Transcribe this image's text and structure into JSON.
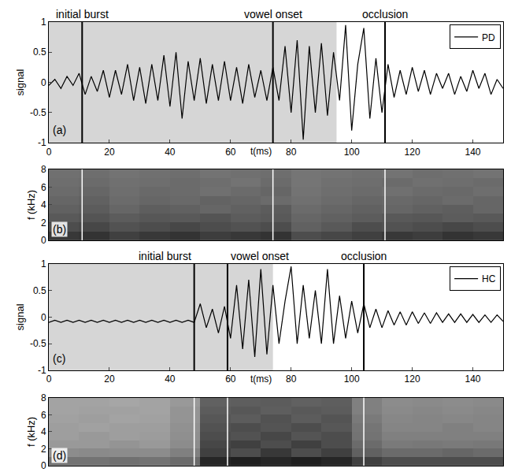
{
  "chart_data": [
    {
      "type": "line",
      "panel_label": "(a)",
      "x_label": "t(ms)",
      "y_label": "signal",
      "xlim": [
        0,
        150
      ],
      "xticks": [
        0,
        20,
        40,
        60,
        80,
        100,
        120,
        140
      ],
      "ylim": [
        -1,
        1
      ],
      "yticks": [
        -1,
        -0.5,
        0,
        0.5,
        1
      ],
      "legend": "upper right",
      "shaded": [
        0,
        95
      ],
      "events": [
        {
          "label": "initial burst",
          "x": 11
        },
        {
          "label": "vowel onset",
          "x": 74
        },
        {
          "label": "occlusion",
          "x": 111
        }
      ],
      "series": [
        {
          "name": "PD",
          "color": "#000000",
          "x": [
            0,
            2,
            4,
            6,
            8,
            10,
            12,
            14,
            16,
            18,
            20,
            22,
            24,
            26,
            28,
            30,
            32,
            34,
            36,
            38,
            40,
            42,
            44,
            46,
            48,
            50,
            52,
            54,
            56,
            58,
            60,
            62,
            64,
            66,
            68,
            70,
            72,
            74,
            76,
            78,
            80,
            82,
            84,
            86,
            88,
            90,
            92,
            94,
            96,
            98,
            100,
            102,
            104,
            106,
            108,
            110,
            112,
            114,
            116,
            118,
            120,
            122,
            124,
            126,
            128,
            130,
            132,
            134,
            136,
            138,
            140,
            142,
            144,
            146,
            148,
            150
          ],
          "values": [
            -0.05,
            0.05,
            -0.1,
            0.1,
            -0.05,
            0.15,
            -0.2,
            0.1,
            -0.15,
            0.2,
            -0.25,
            0.2,
            -0.2,
            0.3,
            -0.3,
            0.25,
            -0.35,
            0.3,
            -0.3,
            0.45,
            -0.4,
            0.5,
            -0.6,
            0.35,
            -0.3,
            0.4,
            -0.35,
            0.3,
            -0.3,
            0.35,
            -0.3,
            0.25,
            -0.35,
            0.3,
            -0.25,
            0.2,
            -0.3,
            0.25,
            -0.3,
            0.6,
            -0.5,
            0.7,
            -0.95,
            0.6,
            -0.5,
            0.65,
            -0.55,
            0.5,
            -0.3,
            0.95,
            -0.8,
            0.3,
            0.9,
            -0.6,
            0.4,
            -0.5,
            0.3,
            -0.25,
            0.2,
            -0.2,
            0.25,
            -0.15,
            0.2,
            -0.2,
            0.15,
            -0.1,
            0.15,
            -0.2,
            0.1,
            -0.15,
            0.2,
            -0.1,
            0.15,
            -0.2,
            0.05,
            -0.1
          ]
        }
      ]
    },
    {
      "type": "heatmap",
      "panel_label": "(b)",
      "y_label": "f (kHz)",
      "color": "gray",
      "xlim": [
        0,
        150
      ],
      "ylim": [
        0,
        8
      ],
      "yticks": [
        0,
        2,
        4,
        6,
        8
      ],
      "tick_labels": "y",
      "zlim": [
        0,
        1
      ],
      "event_lines": [
        11,
        74,
        111
      ],
      "x": [
        5,
        15,
        25,
        35,
        45,
        55,
        65,
        75,
        85,
        95,
        105,
        115,
        125,
        135,
        145
      ],
      "y": [
        0.5,
        1.5,
        2.5,
        3.5,
        4.5,
        5.5,
        6.5,
        7.5
      ],
      "cells": [
        [
          0.22,
          0.2,
          0.25,
          0.22,
          0.2,
          0.24,
          0.22,
          0.2,
          0.3,
          0.28,
          0.25,
          0.22,
          0.24,
          0.2,
          0.22
        ],
        [
          0.3,
          0.28,
          0.32,
          0.3,
          0.28,
          0.3,
          0.32,
          0.3,
          0.38,
          0.35,
          0.3,
          0.32,
          0.3,
          0.28,
          0.3
        ],
        [
          0.35,
          0.33,
          0.36,
          0.34,
          0.35,
          0.33,
          0.36,
          0.35,
          0.4,
          0.38,
          0.36,
          0.35,
          0.34,
          0.36,
          0.35
        ],
        [
          0.38,
          0.36,
          0.4,
          0.37,
          0.38,
          0.4,
          0.38,
          0.36,
          0.42,
          0.4,
          0.38,
          0.4,
          0.38,
          0.37,
          0.4
        ],
        [
          0.4,
          0.38,
          0.42,
          0.4,
          0.41,
          0.39,
          0.4,
          0.42,
          0.44,
          0.42,
          0.4,
          0.41,
          0.4,
          0.42,
          0.4
        ],
        [
          0.42,
          0.4,
          0.43,
          0.41,
          0.42,
          0.44,
          0.42,
          0.4,
          0.45,
          0.43,
          0.42,
          0.44,
          0.42,
          0.41,
          0.43
        ],
        [
          0.43,
          0.42,
          0.44,
          0.43,
          0.42,
          0.43,
          0.45,
          0.42,
          0.46,
          0.44,
          0.43,
          0.42,
          0.44,
          0.43,
          0.42
        ],
        [
          0.44,
          0.43,
          0.45,
          0.44,
          0.43,
          0.45,
          0.44,
          0.43,
          0.46,
          0.45,
          0.44,
          0.45,
          0.43,
          0.44,
          0.45
        ]
      ]
    },
    {
      "type": "line",
      "panel_label": "(c)",
      "x_label": "t(ms)",
      "y_label": "signal",
      "xlim": [
        0,
        150
      ],
      "xticks": [
        0,
        20,
        40,
        60,
        80,
        100,
        120,
        140
      ],
      "ylim": [
        -1,
        1
      ],
      "yticks": [
        -1,
        -0.5,
        0,
        0.5,
        1
      ],
      "legend": "upper right",
      "shaded": [
        0,
        74
      ],
      "events": [
        {
          "label": "initial burst",
          "x": 48
        },
        {
          "label": "vowel onset",
          "x": 59
        },
        {
          "label": "occlusion",
          "x": 104
        }
      ],
      "series": [
        {
          "name": "HC",
          "color": "#000000",
          "x": [
            0,
            2,
            4,
            6,
            8,
            10,
            12,
            14,
            16,
            18,
            20,
            22,
            24,
            26,
            28,
            30,
            32,
            34,
            36,
            38,
            40,
            42,
            44,
            46,
            48,
            50,
            52,
            54,
            56,
            58,
            60,
            62,
            64,
            66,
            68,
            70,
            72,
            74,
            76,
            78,
            80,
            82,
            84,
            86,
            88,
            90,
            92,
            94,
            96,
            98,
            100,
            102,
            104,
            106,
            108,
            110,
            112,
            114,
            116,
            118,
            120,
            122,
            124,
            126,
            128,
            130,
            132,
            134,
            136,
            138,
            140,
            142,
            144,
            146,
            148,
            150
          ],
          "values": [
            -0.1,
            -0.06,
            -0.1,
            -0.06,
            -0.1,
            -0.06,
            -0.1,
            -0.06,
            -0.1,
            -0.06,
            -0.1,
            -0.06,
            -0.1,
            -0.06,
            -0.1,
            -0.06,
            -0.1,
            -0.06,
            -0.1,
            -0.06,
            -0.1,
            -0.06,
            -0.1,
            -0.06,
            -0.1,
            0.25,
            -0.2,
            0.15,
            -0.3,
            0.2,
            -0.4,
            0.6,
            -0.6,
            0.7,
            -0.75,
            0.9,
            -0.7,
            0.6,
            -0.5,
            0.3,
            0.95,
            -0.5,
            0.6,
            -0.4,
            0.5,
            -0.5,
            0.9,
            -0.5,
            0.4,
            -0.4,
            0.3,
            -0.3,
            0.25,
            -0.2,
            0.15,
            -0.2,
            0.12,
            -0.15,
            0.1,
            -0.15,
            0.1,
            -0.12,
            0.08,
            -0.12,
            0.08,
            -0.1,
            0.06,
            -0.1,
            0.06,
            -0.1,
            0.05,
            -0.1,
            0.04,
            -0.1,
            0.04,
            -0.08
          ]
        }
      ]
    },
    {
      "type": "heatmap",
      "panel_label": "(d)",
      "y_label": "f (kHz)",
      "color": "gray",
      "xlim": [
        0,
        150
      ],
      "ylim": [
        0,
        8
      ],
      "yticks": [
        0,
        2,
        4,
        6,
        8
      ],
      "tick_labels": "y",
      "zlim": [
        0,
        1
      ],
      "event_lines": [
        48,
        59,
        104
      ],
      "x": [
        5,
        15,
        25,
        35,
        45,
        55,
        65,
        75,
        85,
        95,
        105,
        115,
        125,
        135,
        145
      ],
      "y": [
        0.5,
        1.5,
        2.5,
        3.5,
        4.5,
        5.5,
        6.5,
        7.5
      ],
      "cells": [
        [
          0.45,
          0.45,
          0.44,
          0.45,
          0.42,
          0.15,
          0.12,
          0.15,
          0.12,
          0.15,
          0.25,
          0.3,
          0.3,
          0.3,
          0.3
        ],
        [
          0.55,
          0.54,
          0.55,
          0.55,
          0.5,
          0.25,
          0.3,
          0.22,
          0.3,
          0.25,
          0.38,
          0.42,
          0.42,
          0.4,
          0.42
        ],
        [
          0.6,
          0.6,
          0.58,
          0.6,
          0.55,
          0.28,
          0.25,
          0.3,
          0.25,
          0.3,
          0.42,
          0.48,
          0.47,
          0.48,
          0.47
        ],
        [
          0.62,
          0.6,
          0.62,
          0.61,
          0.56,
          0.3,
          0.32,
          0.28,
          0.33,
          0.3,
          0.45,
          0.5,
          0.5,
          0.5,
          0.5
        ],
        [
          0.62,
          0.63,
          0.62,
          0.62,
          0.57,
          0.32,
          0.3,
          0.33,
          0.3,
          0.34,
          0.46,
          0.52,
          0.52,
          0.5,
          0.52
        ],
        [
          0.63,
          0.62,
          0.64,
          0.63,
          0.58,
          0.34,
          0.36,
          0.32,
          0.36,
          0.33,
          0.48,
          0.53,
          0.52,
          0.53,
          0.52
        ],
        [
          0.64,
          0.63,
          0.63,
          0.64,
          0.58,
          0.36,
          0.34,
          0.37,
          0.35,
          0.36,
          0.5,
          0.54,
          0.53,
          0.54,
          0.53
        ],
        [
          0.64,
          0.64,
          0.65,
          0.64,
          0.6,
          0.38,
          0.37,
          0.36,
          0.38,
          0.37,
          0.5,
          0.55,
          0.54,
          0.55,
          0.54
        ]
      ]
    }
  ]
}
